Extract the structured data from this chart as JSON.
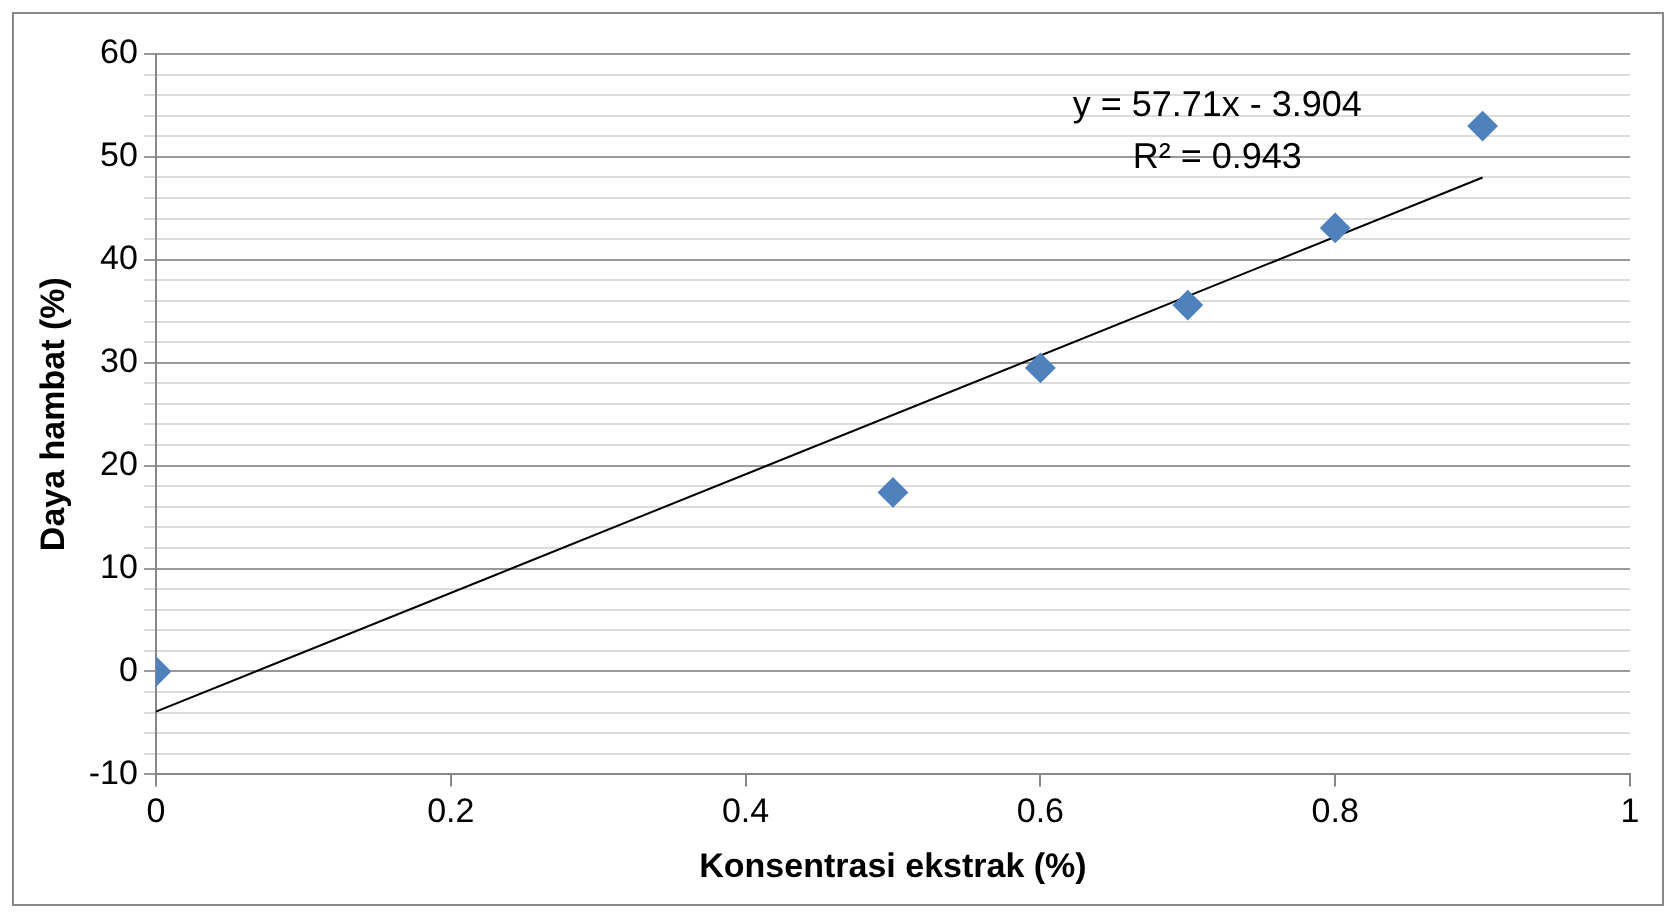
{
  "chart_data": {
    "type": "scatter",
    "xlabel": "Konsentrasi ekstrak (%)",
    "ylabel": "Daya hambat (%)",
    "x": [
      0,
      0.5,
      0.6,
      0.7,
      0.8,
      0.9
    ],
    "series": [
      {
        "type": "scatter",
        "color": "#4f81bd",
        "marker": "diamond",
        "values": [
          0,
          17.4,
          29.5,
          35.6,
          43.1,
          53.0
        ]
      },
      {
        "type": "line",
        "color": "#000000",
        "marker": "none",
        "x": [
          0,
          0.9
        ],
        "values": [
          -3.9,
          48.0
        ]
      }
    ],
    "annotations": [
      "y = 57.71x - 3.904",
      "R² = 0.943"
    ],
    "xlim": [
      0,
      1
    ],
    "xticks": [
      0,
      0.2,
      0.4,
      0.6,
      0.8,
      1
    ],
    "ylim": [
      -10,
      60
    ],
    "yticks": [
      -10,
      {
        "value": -8,
        "label": null
      },
      {
        "value": -6,
        "label": null
      },
      {
        "value": -4,
        "label": null
      },
      {
        "value": -2,
        "label": null
      },
      0,
      {
        "value": 2,
        "label": null
      },
      {
        "value": 4,
        "label": null
      },
      {
        "value": 6,
        "label": null
      },
      {
        "value": 8,
        "label": null
      },
      10,
      {
        "value": 12,
        "label": null
      },
      {
        "value": 14,
        "label": null
      },
      {
        "value": 16,
        "label": null
      },
      {
        "value": 18,
        "label": null
      },
      20,
      {
        "value": 22,
        "label": null
      },
      {
        "value": 24,
        "label": null
      },
      {
        "value": 26,
        "label": null
      },
      {
        "value": 28,
        "label": null
      },
      30,
      {
        "value": 32,
        "label": null
      },
      {
        "value": 34,
        "label": null
      },
      {
        "value": 36,
        "label": null
      },
      {
        "value": 38,
        "label": null
      },
      40,
      {
        "value": 42,
        "label": null
      },
      {
        "value": 44,
        "label": null
      },
      {
        "value": 46,
        "label": null
      },
      {
        "value": 48,
        "label": null
      },
      50,
      {
        "value": 52,
        "label": null
      },
      {
        "value": 54,
        "label": null
      },
      {
        "value": 56,
        "label": null
      },
      {
        "value": 58,
        "label": null
      },
      60
    ],
    "grid": "y",
    "legend": false
  }
}
